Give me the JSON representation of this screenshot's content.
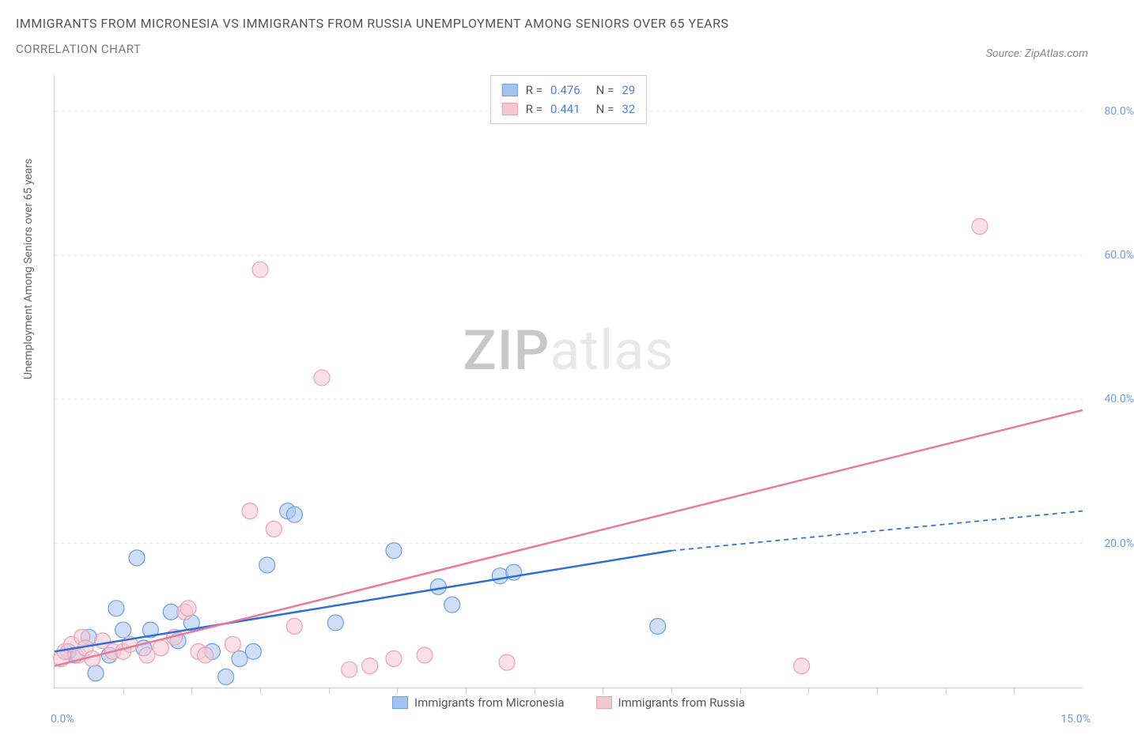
{
  "title": "IMMIGRANTS FROM MICRONESIA VS IMMIGRANTS FROM RUSSIA UNEMPLOYMENT AMONG SENIORS OVER 65 YEARS",
  "subtitle": "CORRELATION CHART",
  "source": "Source: ZipAtlas.com",
  "y_axis_label": "Unemployment Among Seniors over 65 years",
  "watermark_bold": "ZIP",
  "watermark_light": "atlas",
  "chart": {
    "type": "scatter-with-regression",
    "xlim": [
      0,
      15
    ],
    "ylim": [
      0,
      85
    ],
    "x_ticks_pct": [
      0,
      5,
      10,
      15
    ],
    "x_tick_labels": [
      "0.0%",
      "",
      "",
      "15.0%"
    ],
    "y_ticks": [
      20,
      40,
      60,
      80
    ],
    "y_tick_labels": [
      "20.0%",
      "40.0%",
      "60.0%",
      "80.0%"
    ],
    "grid_color": "#e5e5e5",
    "axis_color": "#cccccc",
    "background_color": "#ffffff",
    "point_radius": 10,
    "point_opacity": 0.55,
    "line_width": 2.5,
    "series": [
      {
        "name": "Immigrants from Micronesia",
        "color_fill": "#a5c3ef",
        "color_stroke": "#6b9ce6",
        "line_color": "#2e6fd6",
        "R": "0.476",
        "N": "29",
        "points": [
          [
            0.2,
            5.0
          ],
          [
            0.3,
            4.5
          ],
          [
            0.5,
            7.0
          ],
          [
            0.6,
            2.0
          ],
          [
            0.9,
            11.0
          ],
          [
            0.8,
            4.5
          ],
          [
            1.0,
            8.0
          ],
          [
            1.2,
            18.0
          ],
          [
            1.3,
            5.5
          ],
          [
            1.4,
            8.0
          ],
          [
            1.7,
            10.5
          ],
          [
            1.8,
            6.5
          ],
          [
            2.0,
            9.0
          ],
          [
            2.3,
            5.0
          ],
          [
            2.5,
            1.5
          ],
          [
            2.7,
            4.0
          ],
          [
            2.9,
            5.0
          ],
          [
            3.4,
            24.5
          ],
          [
            3.5,
            24.0
          ],
          [
            3.1,
            17.0
          ],
          [
            4.1,
            9.0
          ],
          [
            4.95,
            19.0
          ],
          [
            5.6,
            14.0
          ],
          [
            5.8,
            11.5
          ],
          [
            6.5,
            15.5
          ],
          [
            6.7,
            16.0
          ],
          [
            8.8,
            8.5
          ]
        ],
        "regression": {
          "x1": 0,
          "y1": 5.0,
          "x2": 9.0,
          "y2": 19.0,
          "x3": 15,
          "y3": 24.5,
          "dashed_after_x": 9.0
        }
      },
      {
        "name": "Immigrants from Russia",
        "color_fill": "#f5c7d2",
        "color_stroke": "#ea9fb3",
        "line_color": "#e87a9a",
        "R": "0.441",
        "N": "32",
        "points": [
          [
            0.1,
            4.0
          ],
          [
            0.15,
            5.0
          ],
          [
            0.25,
            6.0
          ],
          [
            0.35,
            4.5
          ],
          [
            0.4,
            7.0
          ],
          [
            0.45,
            5.5
          ],
          [
            0.55,
            4.0
          ],
          [
            0.7,
            6.5
          ],
          [
            0.85,
            5.0
          ],
          [
            1.0,
            5.0
          ],
          [
            1.1,
            6.0
          ],
          [
            1.35,
            4.5
          ],
          [
            1.55,
            5.5
          ],
          [
            1.75,
            7.0
          ],
          [
            1.9,
            10.5
          ],
          [
            1.95,
            11.0
          ],
          [
            2.1,
            5.0
          ],
          [
            2.2,
            4.5
          ],
          [
            2.6,
            6.0
          ],
          [
            2.85,
            24.5
          ],
          [
            3.0,
            58.0
          ],
          [
            3.2,
            22.0
          ],
          [
            3.5,
            8.5
          ],
          [
            3.9,
            43.0
          ],
          [
            4.3,
            2.5
          ],
          [
            4.6,
            3.0
          ],
          [
            4.95,
            4.0
          ],
          [
            5.4,
            4.5
          ],
          [
            6.6,
            3.5
          ],
          [
            10.9,
            3.0
          ],
          [
            13.5,
            64.0
          ]
        ],
        "regression": {
          "x1": 0,
          "y1": 3.0,
          "x2": 15,
          "y2": 38.5
        }
      }
    ]
  },
  "legend_top": {
    "rows": [
      {
        "swatch_fill": "#a5c3ef",
        "swatch_stroke": "#6b9ce6",
        "r_label": "R =",
        "r_val": "0.476",
        "n_label": "N =",
        "n_val": "29"
      },
      {
        "swatch_fill": "#f5c7d2",
        "swatch_stroke": "#ea9fb3",
        "r_label": "R =",
        "r_val": "0.441",
        "n_label": "N =",
        "n_val": "32"
      }
    ]
  },
  "legend_bottom": {
    "items": [
      {
        "swatch_fill": "#a5c3ef",
        "swatch_stroke": "#6b9ce6",
        "label": "Immigrants from Micronesia"
      },
      {
        "swatch_fill": "#f5c7d2",
        "swatch_stroke": "#ea9fb3",
        "label": "Immigrants from Russia"
      }
    ]
  }
}
